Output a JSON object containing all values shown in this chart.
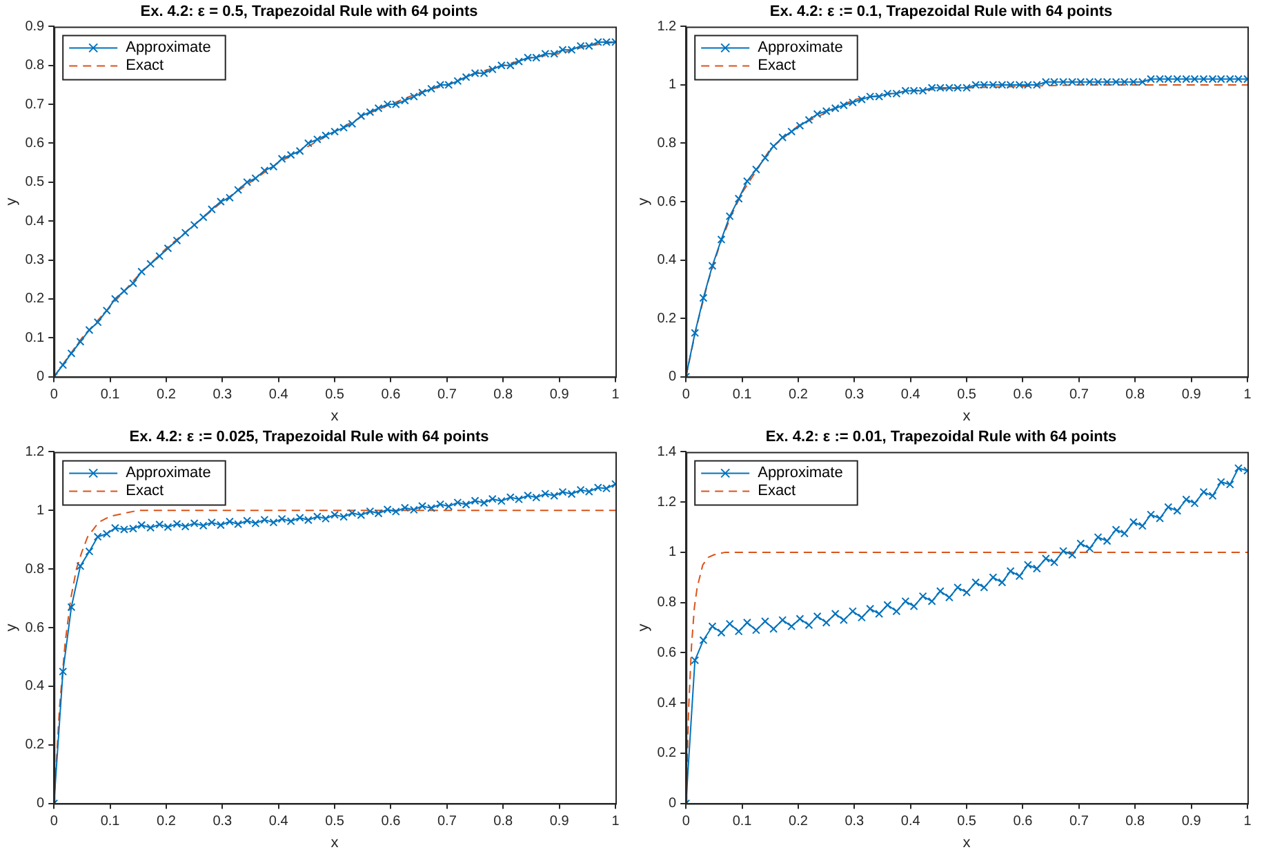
{
  "chart_data": [
    {
      "type": "line",
      "title": "Ex. 4.2: ε = 0.5, Trapezoidal Rule with 64 points",
      "xlabel": "x",
      "ylabel": "y",
      "legend": "top left",
      "grid": false,
      "x": [
        0,
        0.016,
        0.031,
        0.047,
        0.063,
        0.078,
        0.094,
        0.109,
        0.125,
        0.141,
        0.156,
        0.172,
        0.188,
        0.203,
        0.219,
        0.234,
        0.25,
        0.266,
        0.281,
        0.297,
        0.313,
        0.328,
        0.344,
        0.359,
        0.375,
        0.391,
        0.406,
        0.422,
        0.438,
        0.453,
        0.469,
        0.484,
        0.5,
        0.516,
        0.531,
        0.547,
        0.563,
        0.578,
        0.594,
        0.609,
        0.625,
        0.641,
        0.656,
        0.672,
        0.688,
        0.703,
        0.719,
        0.734,
        0.75,
        0.766,
        0.781,
        0.797,
        0.813,
        0.828,
        0.844,
        0.859,
        0.875,
        0.891,
        0.906,
        0.922,
        0.938,
        0.953,
        0.969,
        0.984,
        1
      ],
      "xlim": [
        0,
        1
      ],
      "xticks": [
        0,
        0.1,
        0.2,
        0.3,
        0.4,
        0.5,
        0.6,
        0.7,
        0.8,
        0.9,
        1
      ],
      "ylim": [
        0,
        0.9
      ],
      "yticks": [
        0,
        0.1,
        0.2,
        0.3,
        0.4,
        0.5,
        0.6,
        0.7,
        0.8,
        0.9
      ],
      "series": [
        {
          "name": "Approximate",
          "color": "#0072bd",
          "marker": "cross",
          "line_style": "solid",
          "values": [
            0,
            0.03,
            0.06,
            0.09,
            0.12,
            0.14,
            0.17,
            0.2,
            0.22,
            0.24,
            0.27,
            0.29,
            0.31,
            0.33,
            0.35,
            0.37,
            0.39,
            0.41,
            0.43,
            0.45,
            0.46,
            0.48,
            0.5,
            0.51,
            0.53,
            0.54,
            0.56,
            0.57,
            0.58,
            0.6,
            0.61,
            0.62,
            0.63,
            0.64,
            0.65,
            0.67,
            0.68,
            0.69,
            0.7,
            0.7,
            0.71,
            0.72,
            0.73,
            0.74,
            0.75,
            0.75,
            0.76,
            0.77,
            0.78,
            0.78,
            0.79,
            0.8,
            0.8,
            0.81,
            0.82,
            0.82,
            0.83,
            0.83,
            0.84,
            0.84,
            0.85,
            0.85,
            0.86,
            0.86,
            0.86
          ]
        },
        {
          "name": "Exact",
          "color": "#d95319",
          "marker": "none",
          "line_style": "dashed",
          "x": [
            0,
            0.05,
            0.1,
            0.15,
            0.2,
            0.25,
            0.3,
            0.35,
            0.4,
            0.45,
            0.5,
            0.55,
            0.6,
            0.65,
            0.7,
            0.75,
            0.8,
            0.85,
            0.9,
            0.95,
            1
          ],
          "values": [
            0,
            0.1,
            0.18,
            0.26,
            0.33,
            0.39,
            0.45,
            0.5,
            0.55,
            0.59,
            0.63,
            0.67,
            0.7,
            0.73,
            0.75,
            0.78,
            0.8,
            0.82,
            0.83,
            0.85,
            0.86
          ]
        }
      ]
    },
    {
      "type": "line",
      "title": "Ex. 4.2: ε := 0.1, Trapezoidal Rule with 64 points",
      "xlabel": "x",
      "ylabel": "y",
      "legend": "top left",
      "grid": false,
      "x": [
        0,
        0.016,
        0.031,
        0.047,
        0.063,
        0.078,
        0.094,
        0.109,
        0.125,
        0.141,
        0.156,
        0.172,
        0.188,
        0.203,
        0.219,
        0.234,
        0.25,
        0.266,
        0.281,
        0.297,
        0.313,
        0.328,
        0.344,
        0.359,
        0.375,
        0.391,
        0.406,
        0.422,
        0.438,
        0.453,
        0.469,
        0.484,
        0.5,
        0.516,
        0.531,
        0.547,
        0.563,
        0.578,
        0.594,
        0.609,
        0.625,
        0.641,
        0.656,
        0.672,
        0.688,
        0.703,
        0.719,
        0.734,
        0.75,
        0.766,
        0.781,
        0.797,
        0.813,
        0.828,
        0.844,
        0.859,
        0.875,
        0.891,
        0.906,
        0.922,
        0.938,
        0.953,
        0.969,
        0.984,
        1
      ],
      "xlim": [
        0,
        1
      ],
      "xticks": [
        0,
        0.1,
        0.2,
        0.3,
        0.4,
        0.5,
        0.6,
        0.7,
        0.8,
        0.9,
        1
      ],
      "ylim": [
        0,
        1.2
      ],
      "yticks": [
        0,
        0.2,
        0.4,
        0.6,
        0.8,
        1,
        1.2
      ],
      "series": [
        {
          "name": "Approximate",
          "color": "#0072bd",
          "marker": "cross",
          "line_style": "solid",
          "values": [
            0,
            0.15,
            0.27,
            0.38,
            0.47,
            0.55,
            0.61,
            0.67,
            0.71,
            0.75,
            0.79,
            0.82,
            0.84,
            0.86,
            0.88,
            0.9,
            0.91,
            0.92,
            0.93,
            0.94,
            0.95,
            0.96,
            0.96,
            0.97,
            0.97,
            0.98,
            0.98,
            0.98,
            0.99,
            0.99,
            0.99,
            0.99,
            0.99,
            1,
            1,
            1,
            1,
            1,
            1,
            1,
            1,
            1.01,
            1.01,
            1.01,
            1.01,
            1.01,
            1.01,
            1.01,
            1.01,
            1.01,
            1.01,
            1.01,
            1.01,
            1.02,
            1.02,
            1.02,
            1.02,
            1.02,
            1.02,
            1.02,
            1.02,
            1.02,
            1.02,
            1.02,
            1.02
          ]
        },
        {
          "name": "Exact",
          "color": "#d95319",
          "marker": "none",
          "line_style": "dashed",
          "x": [
            0,
            0.02,
            0.04,
            0.06,
            0.08,
            0.1,
            0.15,
            0.2,
            0.3,
            0.4,
            0.5,
            0.7,
            1
          ],
          "values": [
            0,
            0.18,
            0.33,
            0.45,
            0.55,
            0.63,
            0.78,
            0.86,
            0.95,
            0.98,
            0.99,
            1,
            1
          ]
        }
      ]
    },
    {
      "type": "line",
      "title": "Ex. 4.2: ε := 0.025, Trapezoidal Rule with 64 points",
      "xlabel": "x",
      "ylabel": "y",
      "legend": "top left",
      "grid": false,
      "x": [
        0,
        0.016,
        0.031,
        0.047,
        0.063,
        0.078,
        0.094,
        0.109,
        0.125,
        0.141,
        0.156,
        0.172,
        0.188,
        0.203,
        0.219,
        0.234,
        0.25,
        0.266,
        0.281,
        0.297,
        0.313,
        0.328,
        0.344,
        0.359,
        0.375,
        0.391,
        0.406,
        0.422,
        0.438,
        0.453,
        0.469,
        0.484,
        0.5,
        0.516,
        0.531,
        0.547,
        0.563,
        0.578,
        0.594,
        0.609,
        0.625,
        0.641,
        0.656,
        0.672,
        0.688,
        0.703,
        0.719,
        0.734,
        0.75,
        0.766,
        0.781,
        0.797,
        0.813,
        0.828,
        0.844,
        0.859,
        0.875,
        0.891,
        0.906,
        0.922,
        0.938,
        0.953,
        0.969,
        0.984,
        1
      ],
      "xlim": [
        0,
        1
      ],
      "xticks": [
        0,
        0.1,
        0.2,
        0.3,
        0.4,
        0.5,
        0.6,
        0.7,
        0.8,
        0.9,
        1
      ],
      "ylim": [
        0,
        1.2
      ],
      "yticks": [
        0,
        0.2,
        0.4,
        0.6,
        0.8,
        1,
        1.2
      ],
      "series": [
        {
          "name": "Approximate",
          "color": "#0072bd",
          "marker": "cross",
          "line_style": "solid",
          "values": [
            0,
            0.45,
            0.67,
            0.81,
            0.86,
            0.91,
            0.92,
            0.94,
            0.935,
            0.938,
            0.95,
            0.941,
            0.952,
            0.943,
            0.954,
            0.945,
            0.956,
            0.948,
            0.959,
            0.95,
            0.962,
            0.953,
            0.965,
            0.956,
            0.968,
            0.959,
            0.971,
            0.963,
            0.975,
            0.967,
            0.979,
            0.972,
            0.985,
            0.978,
            0.991,
            0.984,
            0.997,
            0.99,
            1.003,
            0.996,
            1.009,
            1.002,
            1.015,
            1.008,
            1.021,
            1.014,
            1.027,
            1.02,
            1.033,
            1.026,
            1.039,
            1.032,
            1.045,
            1.038,
            1.051,
            1.044,
            1.057,
            1.05,
            1.063,
            1.056,
            1.07,
            1.064,
            1.078,
            1.075,
            1.09
          ]
        },
        {
          "name": "Exact",
          "color": "#d95319",
          "marker": "none",
          "line_style": "dashed",
          "x": [
            0,
            0.01,
            0.02,
            0.03,
            0.04,
            0.05,
            0.06,
            0.08,
            0.1,
            0.15,
            0.2,
            1
          ],
          "values": [
            0,
            0.33,
            0.55,
            0.7,
            0.8,
            0.86,
            0.91,
            0.96,
            0.98,
            1,
            1,
            1
          ]
        }
      ]
    },
    {
      "type": "line",
      "title": "Ex. 4.2: ε := 0.01, Trapezoidal Rule with 64 points",
      "xlabel": "x",
      "ylabel": "y",
      "legend": "top left",
      "grid": false,
      "x": [
        0,
        0.016,
        0.031,
        0.047,
        0.063,
        0.078,
        0.094,
        0.109,
        0.125,
        0.141,
        0.156,
        0.172,
        0.188,
        0.203,
        0.219,
        0.234,
        0.25,
        0.266,
        0.281,
        0.297,
        0.313,
        0.328,
        0.344,
        0.359,
        0.375,
        0.391,
        0.406,
        0.422,
        0.438,
        0.453,
        0.469,
        0.484,
        0.5,
        0.516,
        0.531,
        0.547,
        0.563,
        0.578,
        0.594,
        0.609,
        0.625,
        0.641,
        0.656,
        0.672,
        0.688,
        0.703,
        0.719,
        0.734,
        0.75,
        0.766,
        0.781,
        0.797,
        0.813,
        0.828,
        0.844,
        0.859,
        0.875,
        0.891,
        0.906,
        0.922,
        0.938,
        0.953,
        0.969,
        0.984,
        1
      ],
      "xlim": [
        0,
        1
      ],
      "xticks": [
        0,
        0.1,
        0.2,
        0.3,
        0.4,
        0.5,
        0.6,
        0.7,
        0.8,
        0.9,
        1
      ],
      "ylim": [
        0,
        1.4
      ],
      "yticks": [
        0,
        0.2,
        0.4,
        0.6,
        0.8,
        1,
        1.2,
        1.4
      ],
      "series": [
        {
          "name": "Approximate",
          "color": "#0072bd",
          "marker": "cross",
          "line_style": "solid",
          "values": [
            0,
            0.57,
            0.65,
            0.705,
            0.68,
            0.715,
            0.685,
            0.72,
            0.69,
            0.725,
            0.695,
            0.73,
            0.705,
            0.735,
            0.71,
            0.745,
            0.72,
            0.755,
            0.73,
            0.765,
            0.74,
            0.775,
            0.755,
            0.79,
            0.765,
            0.805,
            0.785,
            0.825,
            0.805,
            0.845,
            0.82,
            0.86,
            0.84,
            0.88,
            0.86,
            0.9,
            0.88,
            0.925,
            0.905,
            0.95,
            0.935,
            0.975,
            0.96,
            1.005,
            0.99,
            1.035,
            1.015,
            1.06,
            1.045,
            1.09,
            1.075,
            1.12,
            1.105,
            1.15,
            1.135,
            1.18,
            1.165,
            1.21,
            1.195,
            1.24,
            1.225,
            1.28,
            1.27,
            1.335,
            1.325
          ]
        },
        {
          "name": "Exact",
          "color": "#d95319",
          "marker": "none",
          "line_style": "dashed",
          "x": [
            0,
            0.005,
            0.01,
            0.015,
            0.02,
            0.03,
            0.04,
            0.05,
            0.07,
            1
          ],
          "values": [
            0,
            0.39,
            0.63,
            0.78,
            0.86,
            0.95,
            0.98,
            0.99,
            1,
            1
          ]
        }
      ]
    }
  ]
}
